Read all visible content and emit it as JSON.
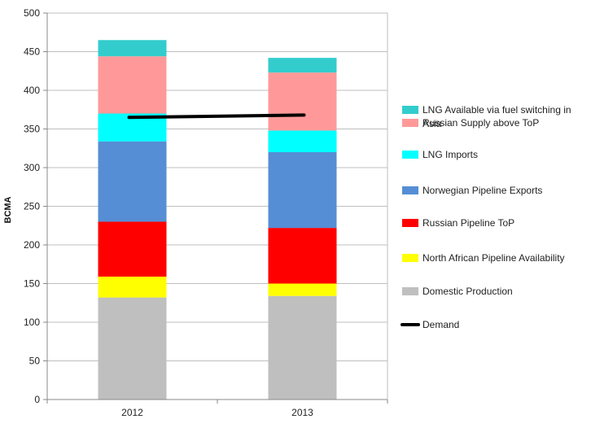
{
  "chart_data": {
    "type": "bar",
    "stacked": true,
    "categories": [
      "2012",
      "2013"
    ],
    "ylabel": "BCMA",
    "ylim": [
      0,
      500
    ],
    "yticks": [
      0,
      50,
      100,
      150,
      200,
      250,
      300,
      350,
      400,
      450,
      500
    ],
    "grid": true,
    "legend_position": "right",
    "series": [
      {
        "name": "Domestic Production",
        "color": "#bfbfbf",
        "values": [
          132,
          134
        ]
      },
      {
        "name": "North African Pipeline Availability",
        "color": "#ffff00",
        "values": [
          27,
          16
        ]
      },
      {
        "name": "Russian Pipeline ToP",
        "color": "#ff0000",
        "values": [
          71,
          72
        ]
      },
      {
        "name": "Norwegian Pipeline Exports",
        "color": "#558ed5",
        "values": [
          104,
          98
        ]
      },
      {
        "name": "LNG Imports",
        "color": "#00ffff",
        "values": [
          36,
          28
        ]
      },
      {
        "name": "Russian Supply above ToP",
        "color": "#ff9999",
        "values": [
          74,
          75
        ]
      },
      {
        "name": "LNG Available via fuel switching in Asia",
        "color": "#33cccc",
        "values": [
          21,
          19
        ]
      }
    ],
    "line_series": {
      "name": "Demand",
      "color": "#000000",
      "values": [
        365,
        368
      ]
    },
    "legend": [
      {
        "key": "lng-fuel-switching",
        "lines": [
          "LNG Available via fuel switching in",
          "Asia"
        ],
        "color": "#33cccc",
        "kind": "box"
      },
      {
        "key": "russian-above-top",
        "lines": [
          "Russian Supply above ToP"
        ],
        "color": "#ff9999",
        "kind": "box"
      },
      {
        "key": "lng-imports",
        "lines": [
          "LNG Imports"
        ],
        "color": "#00ffff",
        "kind": "box"
      },
      {
        "key": "norwegian-pipeline",
        "lines": [
          "Norwegian Pipeline Exports"
        ],
        "color": "#558ed5",
        "kind": "box"
      },
      {
        "key": "russian-pipeline-top",
        "lines": [
          "Russian Pipeline ToP"
        ],
        "color": "#ff0000",
        "kind": "box"
      },
      {
        "key": "north-african-pipeline",
        "lines": [
          "North African Pipeline Availability"
        ],
        "color": "#ffff00",
        "kind": "box"
      },
      {
        "key": "domestic-production",
        "lines": [
          "Domestic Production"
        ],
        "color": "#bfbfbf",
        "kind": "box"
      },
      {
        "key": "demand",
        "lines": [
          "Demand"
        ],
        "color": "#000000",
        "kind": "line"
      }
    ]
  }
}
